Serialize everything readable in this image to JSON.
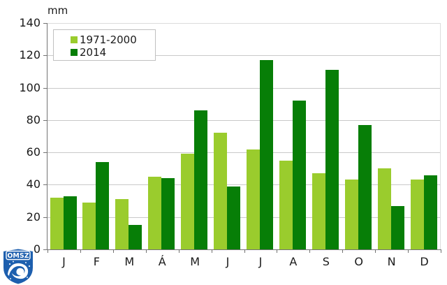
{
  "chart_data": {
    "type": "bar",
    "title": "",
    "unit": "mm",
    "xlabel": "",
    "ylabel": "mm",
    "categories": [
      "J",
      "F",
      "M",
      "Á",
      "M",
      "J",
      "J",
      "A",
      "S",
      "O",
      "N",
      "D"
    ],
    "series": [
      {
        "name": "1971-2000",
        "color": "#9ACC2D",
        "values": [
          32,
          29,
          31,
          45,
          59,
          72,
          62,
          55,
          47,
          43,
          50,
          43
        ]
      },
      {
        "name": "2014",
        "color": "#077E07",
        "values": [
          33,
          54,
          15,
          44,
          86,
          39,
          117,
          92,
          111,
          77,
          27,
          46
        ]
      }
    ],
    "ylim": [
      0,
      140
    ],
    "ytick_interval": 20,
    "yticks": [
      0,
      20,
      40,
      60,
      80,
      100,
      120,
      140
    ],
    "grid": true,
    "legend_position": "top-left-inside"
  },
  "legend": {
    "items": [
      {
        "label": "1971-2000",
        "color": "#9ACC2D"
      },
      {
        "label": "2014",
        "color": "#077E07"
      }
    ]
  },
  "logo": {
    "text": "OMSZ",
    "shield_color": "#1d5fae"
  },
  "colors": {
    "background": "#ffffff",
    "gridline": "#c9c9c9",
    "axis": "#737373",
    "text": "#1a1a1a"
  }
}
